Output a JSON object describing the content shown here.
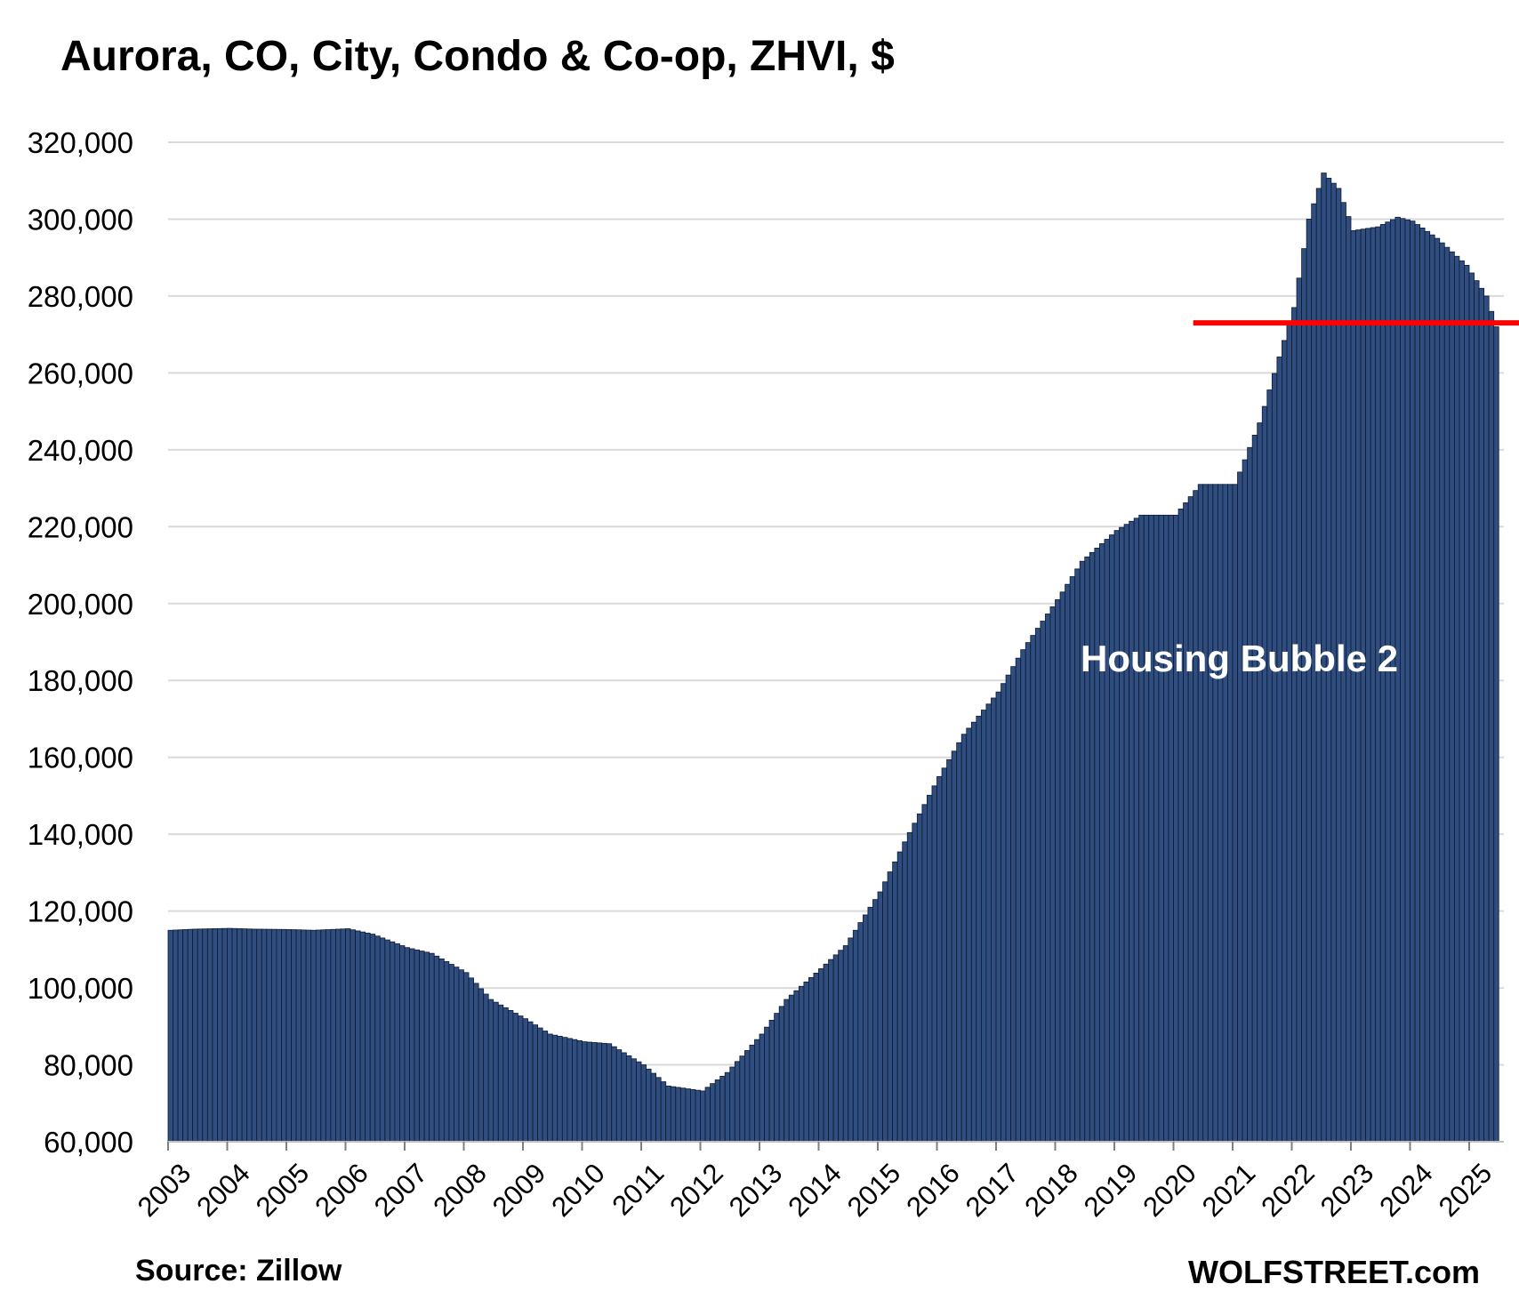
{
  "title": "Aurora, CO, City, Condo & Co-op, ZHVI, $",
  "source": "Source: Zillow",
  "brand": "WOLFSTREET.com",
  "colors": {
    "bar_fill": "#2f4d7e",
    "bar_edge": "#0d1a33",
    "reference_line": "#ff0000",
    "grid": "#d9d9d9",
    "annotation_text": "#ffffff"
  },
  "chart_data": {
    "type": "bar",
    "frequency": "monthly",
    "ylim": [
      60000,
      320000
    ],
    "y_ticks": [
      "60,000",
      "80,000",
      "100,000",
      "120,000",
      "140,000",
      "160,000",
      "180,000",
      "200,000",
      "220,000",
      "240,000",
      "260,000",
      "280,000",
      "300,000",
      "320,000"
    ],
    "y_tick_values": [
      60000,
      80000,
      100000,
      120000,
      140000,
      160000,
      180000,
      200000,
      220000,
      240000,
      260000,
      280000,
      300000,
      320000
    ],
    "x_ticks": [
      "2003",
      "2004",
      "2005",
      "2006",
      "2007",
      "2008",
      "2009",
      "2010",
      "2011",
      "2012",
      "2013",
      "2014",
      "2015",
      "2016",
      "2017",
      "2018",
      "2019",
      "2020",
      "2021",
      "2022",
      "2023",
      "2024",
      "2025"
    ],
    "grid": "horizontal",
    "annotation": "Housing Bubble 2",
    "reference_line": {
      "value": 273000,
      "from": "2020-05"
    },
    "anchors": [
      [
        "2003-01",
        115000
      ],
      [
        "2003-06",
        115300
      ],
      [
        "2004-01",
        115500
      ],
      [
        "2004-06",
        115300
      ],
      [
        "2005-01",
        115200
      ],
      [
        "2005-06",
        115000
      ],
      [
        "2006-01",
        115400
      ],
      [
        "2006-06",
        114000
      ],
      [
        "2007-01",
        110500
      ],
      [
        "2007-06",
        109000
      ],
      [
        "2008-01",
        104000
      ],
      [
        "2008-06",
        97000
      ],
      [
        "2009-01",
        92000
      ],
      [
        "2009-06",
        88000
      ],
      [
        "2010-01",
        86000
      ],
      [
        "2010-06",
        85500
      ],
      [
        "2011-01",
        80000
      ],
      [
        "2011-06",
        74500
      ],
      [
        "2012-01",
        73200
      ],
      [
        "2012-06",
        78000
      ],
      [
        "2013-01",
        88000
      ],
      [
        "2013-06",
        97000
      ],
      [
        "2014-01",
        105000
      ],
      [
        "2014-06",
        111000
      ],
      [
        "2015-01",
        125000
      ],
      [
        "2015-06",
        138000
      ],
      [
        "2016-01",
        155000
      ],
      [
        "2016-06",
        166000
      ],
      [
        "2017-01",
        177000
      ],
      [
        "2017-06",
        188000
      ],
      [
        "2018-01",
        201000
      ],
      [
        "2018-06",
        211000
      ],
      [
        "2019-01",
        219000
      ],
      [
        "2019-06",
        223000
      ],
      [
        "2020-01",
        223000
      ],
      [
        "2020-06",
        231000
      ],
      [
        "2021-01",
        231000
      ],
      [
        "2021-06",
        247000
      ],
      [
        "2022-01",
        277000
      ],
      [
        "2022-04",
        300000
      ],
      [
        "2022-07",
        312000
      ],
      [
        "2022-10",
        308000
      ],
      [
        "2023-01",
        297000
      ],
      [
        "2023-06",
        298000
      ],
      [
        "2023-10",
        300500
      ],
      [
        "2024-01",
        299500
      ],
      [
        "2024-06",
        295000
      ],
      [
        "2024-12",
        288000
      ],
      [
        "2025-04",
        280000
      ],
      [
        "2025-06",
        272000
      ]
    ]
  }
}
